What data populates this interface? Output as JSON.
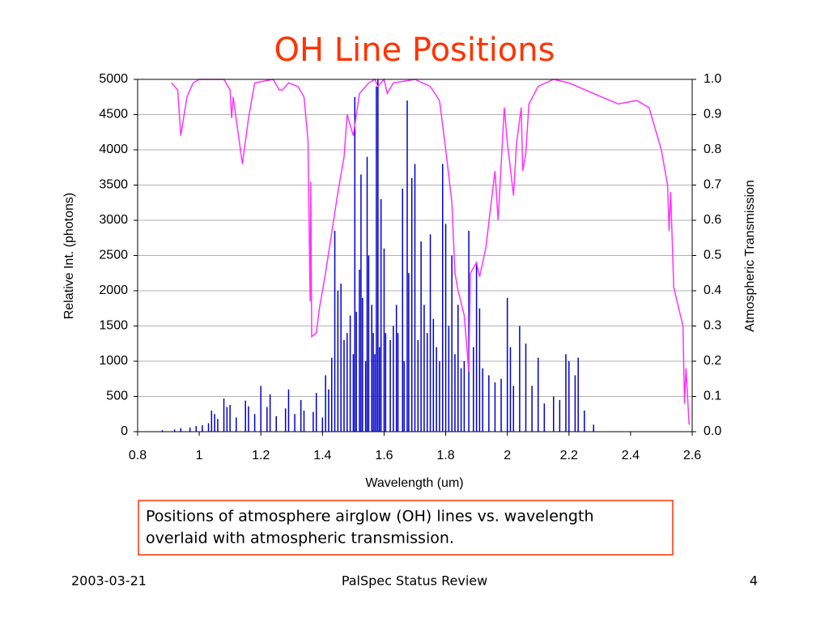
{
  "chart_data": {
    "type": "combo",
    "title": "OH Line Positions",
    "x_label": "Wavelength (um)",
    "y_label": "Relative Int. (photons)",
    "y2_label": "Atmospheric Transmission",
    "xlim": [
      0.8,
      2.6
    ],
    "xticks": [
      0.8,
      1,
      1.2,
      1.4,
      1.6,
      1.8,
      2,
      2.2,
      2.4,
      2.6
    ],
    "ylim": [
      0,
      5000
    ],
    "yticks": [
      0,
      500,
      1000,
      1500,
      2000,
      2500,
      3000,
      3500,
      4000,
      4500,
      5000
    ],
    "y2lim": [
      0,
      1
    ],
    "y2ticks": [
      {
        "value": 0,
        "label": "0.0"
      },
      0.1,
      0.2,
      0.3,
      0.4,
      0.5,
      0.6,
      0.7,
      0.8,
      0.9,
      {
        "value": 1,
        "label": "1.0"
      }
    ],
    "grid": true,
    "series": [
      {
        "type": "stem",
        "color": "#0000cc",
        "x": [
          0.88,
          0.92,
          0.94,
          0.97,
          0.99,
          1.01,
          1.03,
          1.04,
          1.05,
          1.06,
          1.08,
          1.09,
          1.1,
          1.12,
          1.15,
          1.16,
          1.18,
          1.2,
          1.22,
          1.23,
          1.25,
          1.28,
          1.29,
          1.31,
          1.33,
          1.34,
          1.37,
          1.38,
          1.4,
          1.41,
          1.42,
          1.43,
          1.44,
          1.45,
          1.46,
          1.47,
          1.48,
          1.49,
          1.5,
          1.505,
          1.51,
          1.52,
          1.525,
          1.53,
          1.54,
          1.545,
          1.55,
          1.56,
          1.565,
          1.57,
          1.575,
          1.58,
          1.585,
          1.59,
          1.6,
          1.605,
          1.62,
          1.63,
          1.64,
          1.645,
          1.66,
          1.665,
          1.675,
          1.68,
          1.69,
          1.7,
          1.71,
          1.72,
          1.73,
          1.74,
          1.75,
          1.76,
          1.77,
          1.78,
          1.79,
          1.8,
          1.81,
          1.82,
          1.83,
          1.84,
          1.85,
          1.86,
          1.875,
          1.89,
          1.9,
          1.91,
          1.92,
          1.94,
          1.96,
          1.98,
          2,
          2.01,
          2.02,
          2.04,
          2.06,
          2.08,
          2.1,
          2.12,
          2.15,
          2.17,
          2.19,
          2.2,
          2.22,
          2.23,
          2.25,
          2.28
        ],
        "values": [
          20,
          30,
          50,
          60,
          80,
          90,
          120,
          300,
          250,
          180,
          470,
          350,
          380,
          200,
          440,
          360,
          250,
          650,
          350,
          530,
          220,
          330,
          600,
          250,
          450,
          300,
          280,
          550,
          200,
          800,
          600,
          1050,
          2850,
          2000,
          2100,
          1300,
          1400,
          1650,
          1100,
          4750,
          1700,
          2300,
          3650,
          1900,
          1000,
          3900,
          2500,
          1800,
          1400,
          1100,
          4900,
          5000,
          1200,
          3300,
          2600,
          1400,
          1300,
          1500,
          1800,
          1400,
          3450,
          1000,
          4700,
          2250,
          3600,
          3800,
          1300,
          2700,
          1800,
          1400,
          2800,
          1600,
          1200,
          1000,
          3800,
          2950,
          1500,
          2500,
          1100,
          1800,
          900,
          1000,
          2850,
          1200,
          2400,
          1750,
          900,
          800,
          700,
          750,
          1900,
          1200,
          650,
          1500,
          1250,
          650,
          1050,
          400,
          500,
          450,
          1100,
          1000,
          800,
          1050,
          300,
          100
        ]
      },
      {
        "type": "line",
        "color": "#ff33ff",
        "axis": "y2",
        "x": [
          0.91,
          0.93,
          0.94,
          0.96,
          0.98,
          1,
          1.08,
          1.1,
          1.105,
          1.11,
          1.14,
          1.16,
          1.18,
          1.24,
          1.26,
          1.27,
          1.29,
          1.32,
          1.34,
          1.353,
          1.36,
          1.362,
          1.365,
          1.38,
          1.39,
          1.41,
          1.45,
          1.47,
          1.48,
          1.5,
          1.52,
          1.55,
          1.57,
          1.58,
          1.6,
          1.61,
          1.63,
          1.7,
          1.75,
          1.78,
          1.8,
          1.82,
          1.83,
          1.84,
          1.86,
          1.875,
          1.88,
          1.9,
          1.91,
          1.93,
          1.96,
          1.97,
          1.99,
          2,
          2.02,
          2.03,
          2.045,
          2.05,
          2.06,
          2.07,
          2.1,
          2.15,
          2.2,
          2.28,
          2.36,
          2.42,
          2.46,
          2.5,
          2.52,
          2.525,
          2.53,
          2.54,
          2.57,
          2.575,
          2.58,
          2.59
        ],
        "values": [
          0.99,
          0.97,
          0.84,
          0.95,
          0.99,
          1,
          1,
          0.97,
          0.89,
          0.95,
          0.76,
          0.89,
          0.99,
          1,
          0.97,
          0.97,
          0.99,
          0.98,
          0.95,
          0.83,
          0.37,
          0.71,
          0.27,
          0.28,
          0.35,
          0.45,
          0.68,
          0.78,
          0.9,
          0.84,
          0.96,
          0.99,
          1,
          0.98,
          1,
          0.96,
          0.99,
          1,
          0.98,
          0.94,
          0.8,
          0.65,
          0.45,
          0.4,
          0.33,
          0.17,
          0.45,
          0.48,
          0.44,
          0.52,
          0.74,
          0.6,
          0.92,
          0.82,
          0.67,
          0.82,
          0.92,
          0.74,
          0.79,
          0.93,
          0.98,
          1,
          0.99,
          0.96,
          0.93,
          0.94,
          0.92,
          0.8,
          0.7,
          0.57,
          0.68,
          0.41,
          0.3,
          0.08,
          0.18,
          0.02
        ]
      }
    ]
  },
  "caption": {
    "lines": [
      "Positions of atmosphere airglow (OH) lines vs. wavelength",
      "overlaid with atmospheric transmission."
    ]
  },
  "footer": {
    "date": "2003-03-21",
    "center": "PalSpec Status Review",
    "page": "4"
  }
}
